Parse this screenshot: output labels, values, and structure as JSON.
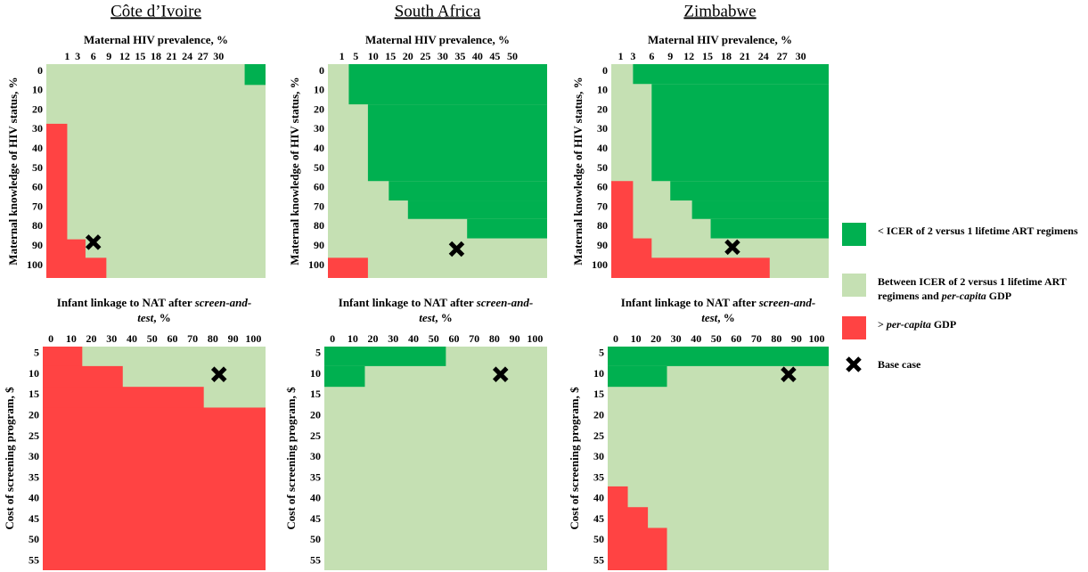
{
  "chart_data": [
    {
      "type": "heatmap",
      "title": "Côte d’Ivoire",
      "xlabel": [
        {
          "text": "Maternal HIV prevalence, %"
        }
      ],
      "ylabel": "Maternal knowledge of HIV status, %",
      "xlim": [
        -3,
        39
      ],
      "xticks": [
        1,
        3,
        6,
        9,
        12,
        15,
        18,
        21,
        24,
        27,
        30
      ],
      "ylim": [
        106.4,
        -3.7
      ],
      "yticks": [
        0,
        10,
        20,
        30,
        40,
        50,
        60,
        70,
        80,
        90,
        100
      ],
      "background": 1,
      "regions": [
        {
          "legend_item": 0,
          "x": [
            35,
            39
          ],
          "y": [
            -3.7,
            7
          ]
        },
        {
          "legend_item": 2,
          "x": [
            -3,
            1
          ],
          "y": [
            27,
            106.4
          ]
        },
        {
          "legend_item": 2,
          "x": [
            -3,
            4.5
          ],
          "y": [
            86.5,
            106.4
          ]
        },
        {
          "legend_item": 2,
          "x": [
            -3,
            8.5
          ],
          "y": [
            96,
            106.4
          ]
        }
      ],
      "base_case": {
        "x": 6,
        "y": 88
      }
    },
    {
      "type": "heatmap",
      "title": "South Africa",
      "xlabel": [
        {
          "text": "Maternal HIV prevalence, %"
        }
      ],
      "ylabel": "Maternal knowledge of HIV status, %",
      "xlim": [
        -3,
        60
      ],
      "xticks": [
        1,
        5,
        10,
        15,
        20,
        25,
        30,
        35,
        40,
        45,
        50
      ],
      "ylim": [
        106.4,
        -3.7
      ],
      "yticks": [
        0,
        10,
        20,
        30,
        40,
        50,
        60,
        70,
        80,
        90,
        100
      ],
      "background": 1,
      "regions": [
        {
          "legend_item": 0,
          "x": [
            3,
            60
          ],
          "y": [
            -3.7,
            17
          ]
        },
        {
          "legend_item": 0,
          "x": [
            8.5,
            60
          ],
          "y": [
            17,
            56.5
          ]
        },
        {
          "legend_item": 0,
          "x": [
            14.5,
            60
          ],
          "y": [
            56.5,
            66.5
          ]
        },
        {
          "legend_item": 0,
          "x": [
            20,
            60
          ],
          "y": [
            66.5,
            76
          ]
        },
        {
          "legend_item": 0,
          "x": [
            37,
            60
          ],
          "y": [
            76,
            86
          ]
        },
        {
          "legend_item": 2,
          "x": [
            -3,
            8.5
          ],
          "y": [
            96,
            106.4
          ]
        }
      ],
      "base_case": {
        "x": 34,
        "y": 91.5
      }
    },
    {
      "type": "heatmap",
      "title": "Zimbabwe",
      "xlabel": [
        {
          "text": "Maternal HIV prevalence, %"
        }
      ],
      "ylabel": "Maternal knowledge of HIV status, %",
      "xlim": [
        -0.5,
        34.5
      ],
      "xticks": [
        1,
        3,
        6,
        9,
        12,
        15,
        18,
        21,
        24,
        27,
        30
      ],
      "ylim": [
        106.4,
        -3.7
      ],
      "yticks": [
        0,
        10,
        20,
        30,
        40,
        50,
        60,
        70,
        80,
        90,
        100
      ],
      "background": 1,
      "regions": [
        {
          "legend_item": 0,
          "x": [
            3,
            34.5
          ],
          "y": [
            -3.7,
            6.5
          ]
        },
        {
          "legend_item": 0,
          "x": [
            6,
            34.5
          ],
          "y": [
            6.5,
            56.5
          ]
        },
        {
          "legend_item": 0,
          "x": [
            9,
            34.5
          ],
          "y": [
            56.5,
            66.5
          ]
        },
        {
          "legend_item": 0,
          "x": [
            12.5,
            34.5
          ],
          "y": [
            66.5,
            76
          ]
        },
        {
          "legend_item": 0,
          "x": [
            15.5,
            34.5
          ],
          "y": [
            76,
            86
          ]
        },
        {
          "legend_item": 2,
          "x": [
            -0.5,
            3
          ],
          "y": [
            56.5,
            106.4
          ]
        },
        {
          "legend_item": 2,
          "x": [
            -0.5,
            6
          ],
          "y": [
            86,
            106.4
          ]
        },
        {
          "legend_item": 2,
          "x": [
            -0.5,
            25
          ],
          "y": [
            96,
            106.4
          ]
        }
      ],
      "base_case": {
        "x": 19,
        "y": 90.5
      }
    },
    {
      "type": "heatmap",
      "xlabel": [
        {
          "text": "Infant linkage to NAT after "
        },
        {
          "text": "screen-and-test",
          "italic": true
        },
        {
          "text": ", %"
        }
      ],
      "ylabel": "Cost of screening program, $",
      "xlim": [
        -4,
        106
      ],
      "xticks": [
        0,
        10,
        20,
        30,
        40,
        50,
        60,
        70,
        80,
        90,
        100
      ],
      "ylim": [
        57.2,
        3.3
      ],
      "yticks": [
        5,
        10,
        15,
        20,
        25,
        30,
        35,
        40,
        45,
        50,
        55
      ],
      "background": 1,
      "regions": [
        {
          "legend_item": 2,
          "x": [
            -4,
            15.5
          ],
          "y": [
            3.3,
            57.2
          ]
        },
        {
          "legend_item": 2,
          "x": [
            -4,
            35.5
          ],
          "y": [
            8,
            57.2
          ]
        },
        {
          "legend_item": 2,
          "x": [
            -4,
            75.5
          ],
          "y": [
            13,
            57.2
          ]
        },
        {
          "legend_item": 2,
          "x": [
            -4,
            106
          ],
          "y": [
            18,
            57.2
          ]
        }
      ],
      "base_case": {
        "x": 83,
        "y": 10
      }
    },
    {
      "type": "heatmap",
      "xlabel": [
        {
          "text": "Infant linkage to NAT after "
        },
        {
          "text": "screen-and-test",
          "italic": true
        },
        {
          "text": ", %"
        }
      ],
      "ylabel": "Cost of screening program, $",
      "xlim": [
        -4,
        106
      ],
      "xticks": [
        0,
        10,
        20,
        30,
        40,
        50,
        60,
        70,
        80,
        90,
        100
      ],
      "ylim": [
        57.2,
        3.3
      ],
      "yticks": [
        5,
        10,
        15,
        20,
        25,
        30,
        35,
        40,
        45,
        50,
        55
      ],
      "background": 1,
      "regions": [
        {
          "legend_item": 0,
          "x": [
            -4,
            56
          ],
          "y": [
            3.3,
            8
          ]
        },
        {
          "legend_item": 0,
          "x": [
            -4,
            16
          ],
          "y": [
            8,
            13
          ]
        }
      ],
      "base_case": {
        "x": 83,
        "y": 10
      }
    },
    {
      "type": "heatmap",
      "xlabel": [
        {
          "text": "Infant linkage to NAT after "
        },
        {
          "text": "screen-and-test",
          "italic": true
        },
        {
          "text": ", %"
        }
      ],
      "ylabel": "Cost of screening program, $",
      "xlim": [
        -4,
        106
      ],
      "xticks": [
        0,
        10,
        20,
        30,
        40,
        50,
        60,
        70,
        80,
        90,
        100
      ],
      "ylim": [
        57.2,
        3.3
      ],
      "yticks": [
        5,
        10,
        15,
        20,
        25,
        30,
        35,
        40,
        45,
        50,
        55
      ],
      "background": 1,
      "regions": [
        {
          "legend_item": 0,
          "x": [
            -4,
            106
          ],
          "y": [
            3.3,
            8
          ]
        },
        {
          "legend_item": 0,
          "x": [
            -4,
            25.5
          ],
          "y": [
            8,
            13
          ]
        },
        {
          "legend_item": 2,
          "x": [
            -4,
            6
          ],
          "y": [
            37,
            57.2
          ]
        },
        {
          "legend_item": 2,
          "x": [
            -4,
            16
          ],
          "y": [
            42,
            57.2
          ]
        },
        {
          "legend_item": 2,
          "x": [
            -4,
            25.5
          ],
          "y": [
            47,
            57.2
          ]
        }
      ],
      "base_case": {
        "x": 86,
        "y": 10
      }
    }
  ],
  "legend": {
    "items": [
      {
        "label": [
          {
            "text": "< ICER of 2 versus 1 lifetime ART regimens"
          }
        ],
        "color": "#00b050"
      },
      {
        "label": [
          {
            "text": "Between ICER of 2 versus 1 lifetime ART regimens and "
          },
          {
            "text": "per-capita",
            "italic": true
          },
          {
            "text": " GDP"
          }
        ],
        "color": "#c5e0b3"
      },
      {
        "label": [
          {
            "text": "> "
          },
          {
            "text": "per-capita",
            "italic": true
          },
          {
            "text": " GDP"
          }
        ],
        "color": "#ff4343"
      }
    ],
    "base_case": {
      "label": "Base case"
    }
  }
}
